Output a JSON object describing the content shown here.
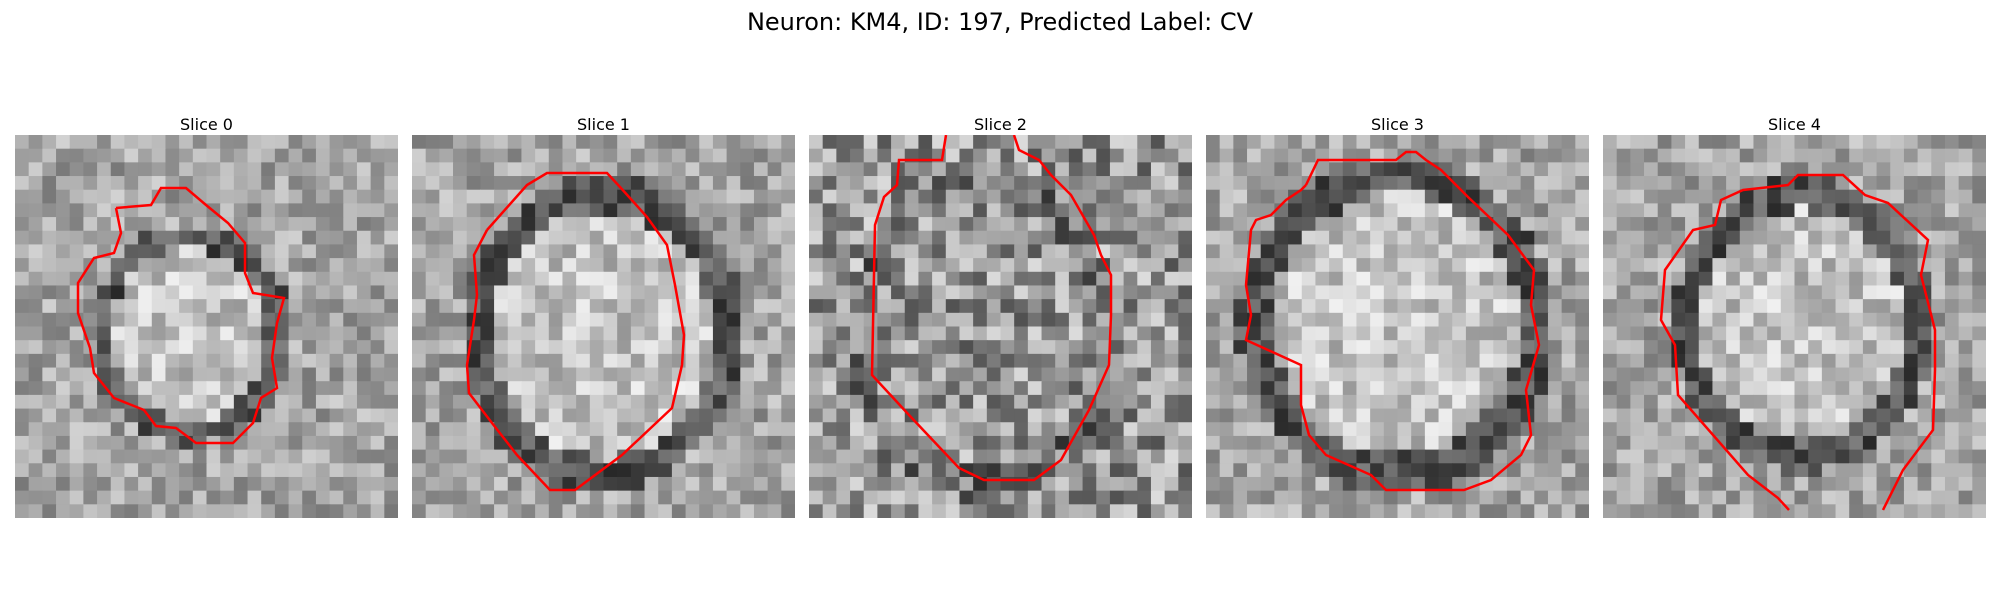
{
  "figure": {
    "title": "Neuron: KM4, ID: 197, Predicted Label: CV"
  },
  "panels": [
    {
      "title": "Slice 0"
    },
    {
      "title": "Slice 1"
    },
    {
      "title": "Slice 2"
    },
    {
      "title": "Slice 3"
    },
    {
      "title": "Slice 4"
    }
  ],
  "colors": {
    "contour": "#ff0000"
  },
  "image": {
    "colormap": "gray",
    "grid": "28x28"
  }
}
